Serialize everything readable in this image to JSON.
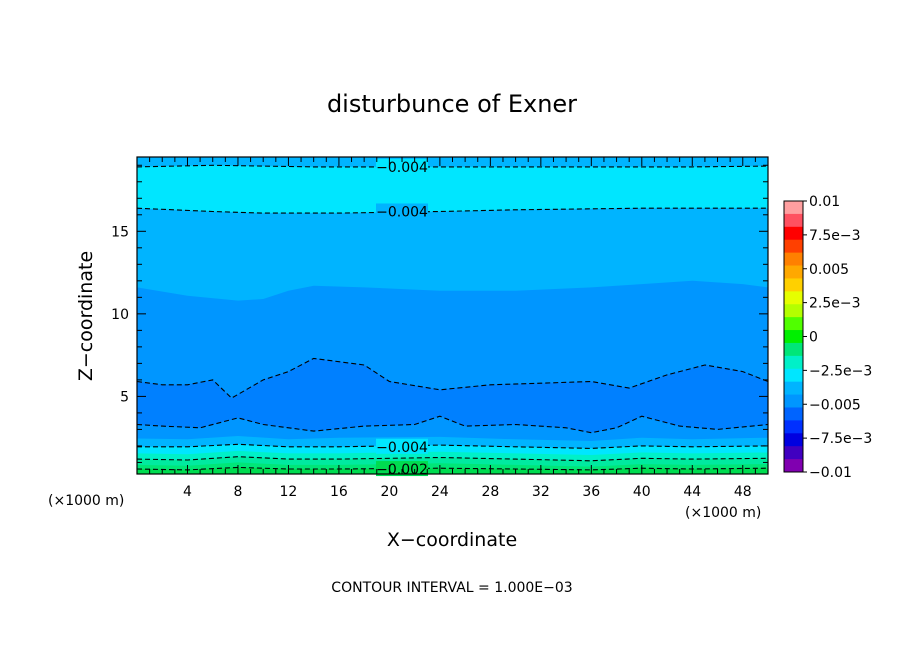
{
  "chart_data": {
    "type": "heatmap",
    "title": "disturbunce of Exner",
    "xlabel": "X−coordinate",
    "ylabel": "Z−coordinate",
    "x_unit": "(×1000 m)",
    "y_unit": "(×1000 m)",
    "xlim": [
      0,
      50
    ],
    "ylim": [
      0.3,
      19.5
    ],
    "x_ticks": [
      4,
      8,
      12,
      16,
      20,
      24,
      28,
      32,
      36,
      40,
      44,
      48
    ],
    "y_ticks": [
      5,
      10,
      15
    ],
    "footer": "CONTOUR INTERVAL = 1.000E−03",
    "colorbar": {
      "tick_labels": [
        "0.01",
        "7.5e−3",
        "0.005",
        "2.5e−3",
        "0",
        "−2.5e−3",
        "−0.005",
        "−7.5e−3",
        "−0.01"
      ],
      "levels": [
        0.01,
        0.0075,
        0.005,
        0.0025,
        0,
        -0.0025,
        -0.005,
        -0.0075,
        -0.01
      ],
      "colors": [
        "#ff9fa0",
        "#ff5060",
        "#ff0000",
        "#ff4000",
        "#ff8000",
        "#ffa800",
        "#ffd000",
        "#e6ff00",
        "#b4ff00",
        "#50ff00",
        "#00f000",
        "#00e678",
        "#00f0c8",
        "#00e6ff",
        "#00b4ff",
        "#0096ff",
        "#0064ff",
        "#0030ff",
        "#0000e0",
        "#4000c0",
        "#8000b0"
      ]
    },
    "bands": [
      {
        "value": -0.0045,
        "color": "#00b4ff",
        "upper_z": null
      },
      {
        "value": -0.004,
        "color": "#00e6ff",
        "upper_z": {
          "x": [
            0,
            6,
            10,
            14,
            20,
            30,
            40,
            44,
            50
          ],
          "z": [
            18.9,
            19.0,
            18.95,
            18.9,
            18.9,
            18.9,
            18.9,
            18.9,
            18.95
          ]
        }
      },
      {
        "value": -0.0045,
        "color": "#00b4ff",
        "upper_z": {
          "x": [
            0,
            6,
            10,
            16,
            24,
            30,
            40,
            50
          ],
          "z": [
            16.4,
            16.2,
            16.1,
            16.1,
            16.2,
            16.3,
            16.4,
            16.4
          ]
        }
      },
      {
        "value": -0.005,
        "color": "#0096ff",
        "upper_z": {
          "x": [
            0,
            4,
            8,
            10,
            12,
            14,
            18,
            24,
            30,
            36,
            40,
            44,
            48,
            50
          ],
          "z": [
            11.6,
            11.1,
            10.8,
            10.9,
            11.4,
            11.7,
            11.6,
            11.4,
            11.4,
            11.6,
            11.8,
            12.0,
            11.8,
            11.6
          ]
        }
      },
      {
        "value": -0.0055,
        "color": "#0080ff",
        "upper_z": {
          "x": [
            0,
            2,
            4,
            6,
            7.5,
            10,
            12,
            14,
            16,
            18,
            20,
            24,
            28,
            32,
            36,
            39,
            42,
            45,
            48,
            50
          ],
          "z": [
            5.9,
            5.7,
            5.7,
            6.0,
            4.9,
            6.0,
            6.5,
            7.3,
            7.1,
            6.9,
            5.9,
            5.4,
            5.7,
            5.8,
            5.9,
            5.5,
            6.3,
            6.9,
            6.5,
            5.9
          ]
        }
      },
      {
        "value": -0.005,
        "color": "#0096ff",
        "upper_z": {
          "x": [
            0,
            2,
            5,
            8,
            10,
            14,
            18,
            22,
            24,
            26,
            30,
            34,
            36,
            38,
            40,
            43,
            46,
            50
          ],
          "z": [
            3.3,
            3.2,
            3.1,
            3.7,
            3.3,
            2.9,
            3.2,
            3.3,
            3.8,
            3.2,
            3.3,
            3.1,
            2.8,
            3.1,
            3.8,
            3.2,
            3.0,
            3.3
          ]
        }
      },
      {
        "value": -0.0045,
        "color": "#00b4ff",
        "upper_z": {
          "x": [
            0,
            4,
            8,
            12,
            16,
            24,
            30,
            36,
            40,
            44,
            50
          ],
          "z": [
            2.45,
            2.4,
            2.6,
            2.4,
            2.5,
            2.55,
            2.4,
            2.3,
            2.5,
            2.4,
            2.5
          ]
        }
      },
      {
        "value": -0.004,
        "color": "#00e6ff",
        "upper_z": {
          "x": [
            0,
            4,
            8,
            12,
            16,
            24,
            30,
            36,
            40,
            44,
            50
          ],
          "z": [
            1.95,
            1.95,
            2.1,
            1.95,
            1.95,
            2.05,
            1.95,
            1.85,
            2.0,
            1.95,
            2.0
          ]
        }
      },
      {
        "value": -0.0035,
        "color": "#00f0c8",
        "upper_z": {
          "x": [
            0,
            4,
            8,
            12,
            16,
            24,
            30,
            36,
            40,
            44,
            50
          ],
          "z": [
            1.55,
            1.5,
            1.7,
            1.55,
            1.55,
            1.65,
            1.55,
            1.45,
            1.6,
            1.55,
            1.6
          ]
        }
      },
      {
        "value": -0.003,
        "color": "#00eaa0",
        "upper_z": {
          "x": [
            0,
            4,
            8,
            12,
            16,
            24,
            30,
            36,
            40,
            44,
            50
          ],
          "z": [
            1.2,
            1.15,
            1.35,
            1.2,
            1.2,
            1.3,
            1.2,
            1.1,
            1.25,
            1.2,
            1.25
          ]
        }
      },
      {
        "value": -0.0025,
        "color": "#00e678",
        "upper_z": {
          "x": [
            0,
            4,
            8,
            12,
            16,
            24,
            30,
            36,
            40,
            44,
            50
          ],
          "z": [
            0.85,
            0.8,
            1.0,
            0.85,
            0.85,
            0.95,
            0.85,
            0.75,
            0.9,
            0.85,
            0.9
          ]
        }
      },
      {
        "value": -0.002,
        "color": "#00dc50",
        "upper_z": {
          "x": [
            0,
            4,
            8,
            12,
            16,
            24,
            30,
            36,
            40,
            44,
            50
          ],
          "z": [
            0.6,
            0.55,
            0.7,
            0.6,
            0.6,
            0.65,
            0.6,
            0.55,
            0.65,
            0.6,
            0.65
          ]
        }
      }
    ],
    "contour_lines": [
      {
        "x": [
          0,
          6,
          10,
          14,
          20,
          30,
          40,
          44,
          50
        ],
        "z": [
          18.9,
          19.0,
          18.95,
          18.9,
          18.9,
          18.9,
          18.9,
          18.9,
          18.95
        ]
      },
      {
        "x": [
          0,
          6,
          10,
          16,
          24,
          30,
          40,
          50
        ],
        "z": [
          16.4,
          16.2,
          16.1,
          16.1,
          16.2,
          16.3,
          16.4,
          16.4
        ]
      },
      {
        "x": [
          0,
          2,
          4,
          6,
          7.5,
          10,
          12,
          14,
          16,
          18,
          20,
          24,
          28,
          32,
          36,
          39,
          42,
          45,
          48,
          50
        ],
        "z": [
          5.9,
          5.7,
          5.7,
          6.0,
          4.9,
          6.0,
          6.5,
          7.3,
          7.1,
          6.9,
          5.9,
          5.4,
          5.7,
          5.8,
          5.9,
          5.5,
          6.3,
          6.9,
          6.5,
          5.9
        ]
      },
      {
        "x": [
          0,
          2,
          5,
          8,
          10,
          14,
          18,
          22,
          24,
          26,
          30,
          34,
          36,
          38,
          40,
          43,
          46,
          50
        ],
        "z": [
          3.3,
          3.2,
          3.1,
          3.7,
          3.3,
          2.9,
          3.2,
          3.3,
          3.8,
          3.2,
          3.3,
          3.1,
          2.8,
          3.1,
          3.8,
          3.2,
          3.0,
          3.3
        ]
      },
      {
        "x": [
          0,
          4,
          8,
          12,
          16,
          24,
          30,
          36,
          40,
          44,
          50
        ],
        "z": [
          1.95,
          1.95,
          2.1,
          1.95,
          1.95,
          2.05,
          1.95,
          1.85,
          2.0,
          1.95,
          2.0
        ]
      },
      {
        "x": [
          0,
          4,
          8,
          12,
          16,
          24,
          30,
          36,
          40,
          44,
          50
        ],
        "z": [
          1.2,
          1.15,
          1.35,
          1.2,
          1.2,
          1.3,
          1.2,
          1.1,
          1.25,
          1.2,
          1.25
        ]
      },
      {
        "x": [
          0,
          4,
          8,
          12,
          16,
          24,
          30,
          36,
          40,
          44,
          50
        ],
        "z": [
          0.6,
          0.55,
          0.7,
          0.6,
          0.6,
          0.65,
          0.6,
          0.55,
          0.65,
          0.6,
          0.65
        ]
      }
    ],
    "contour_labels": [
      {
        "text": "−0.004",
        "x": 21,
        "z": 18.9
      },
      {
        "text": "−0.004",
        "x": 21,
        "z": 16.2
      },
      {
        "text": "−0.004",
        "x": 21,
        "z": 1.95
      },
      {
        "text": "−0.002",
        "x": 21,
        "z": 0.6
      }
    ]
  }
}
